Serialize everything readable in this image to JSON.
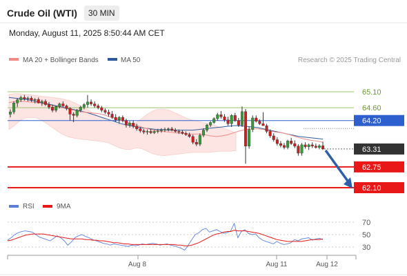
{
  "header": {
    "title": "Crude Oil (WTI)",
    "timeframe": "30 MIN",
    "datetime": "Monday, August 11, 2025 8:50:44 AM CET"
  },
  "chart_data": {
    "type": "candlestick",
    "legend": [
      {
        "label": "MA 20 + Bollinger Bands",
        "color": "#f08b86"
      },
      {
        "label": "MA 50",
        "color": "#2d5a9e"
      }
    ],
    "copyright": "Research © 2025 Trading Central",
    "x_tick_labels": [
      "Aug 8",
      "Aug 11",
      "Aug 12"
    ],
    "ylim": [
      61.95,
      65.45
    ],
    "levels": [
      {
        "value": "65.10",
        "kind": "resistance",
        "color": "#9bc36e",
        "label_style": "text"
      },
      {
        "value": "64.60",
        "kind": "resistance",
        "color": "#9bc36e",
        "label_style": "text"
      },
      {
        "value": "64.20",
        "kind": "pivot",
        "color": "#2d5fce",
        "label_style": "box"
      },
      {
        "value": "63.31",
        "kind": "last",
        "color": "#333333",
        "label_style": "box"
      },
      {
        "value": "62.75",
        "kind": "support",
        "color": "#e81818",
        "label_style": "box"
      },
      {
        "value": "62.10",
        "kind": "support",
        "color": "#e81818",
        "label_style": "box"
      }
    ],
    "candles": [
      [
        64.4,
        64.55,
        64.3,
        64.47
      ],
      [
        64.47,
        64.8,
        64.4,
        64.75
      ],
      [
        64.75,
        64.9,
        64.62,
        64.85
      ],
      [
        64.85,
        64.98,
        64.78,
        64.92
      ],
      [
        64.92,
        65.0,
        64.82,
        64.88
      ],
      [
        64.88,
        64.95,
        64.8,
        64.9
      ],
      [
        64.9,
        64.96,
        64.78,
        64.84
      ],
      [
        64.84,
        64.9,
        64.74,
        64.86
      ],
      [
        64.86,
        64.92,
        64.73,
        64.76
      ],
      [
        64.76,
        64.85,
        64.66,
        64.8
      ],
      [
        64.8,
        64.86,
        64.66,
        64.7
      ],
      [
        64.7,
        64.78,
        64.56,
        64.62
      ],
      [
        64.62,
        64.7,
        64.46,
        64.52
      ],
      [
        64.52,
        64.66,
        64.46,
        64.64
      ],
      [
        64.64,
        64.76,
        64.58,
        64.72
      ],
      [
        64.72,
        64.8,
        64.62,
        64.66
      ],
      [
        64.66,
        64.7,
        64.52,
        64.58
      ],
      [
        64.58,
        64.62,
        64.2,
        64.4
      ],
      [
        64.4,
        64.46,
        64.15,
        64.36
      ],
      [
        64.36,
        64.56,
        64.3,
        64.52
      ],
      [
        64.52,
        64.66,
        64.46,
        64.62
      ],
      [
        64.62,
        64.74,
        64.55,
        64.7
      ],
      [
        64.7,
        65.0,
        64.6,
        64.78
      ],
      [
        64.78,
        64.86,
        64.66,
        64.72
      ],
      [
        64.72,
        64.8,
        64.6,
        64.66
      ],
      [
        64.66,
        64.72,
        64.55,
        64.6
      ],
      [
        64.6,
        64.66,
        64.46,
        64.52
      ],
      [
        64.52,
        64.58,
        64.4,
        64.46
      ],
      [
        64.46,
        64.54,
        64.32,
        64.4
      ],
      [
        64.4,
        64.5,
        64.25,
        64.3
      ],
      [
        64.3,
        64.4,
        64.15,
        64.22
      ],
      [
        64.22,
        64.34,
        64.1,
        64.3
      ],
      [
        64.3,
        64.36,
        64.14,
        64.2
      ],
      [
        64.2,
        64.26,
        63.98,
        64.06
      ],
      [
        64.06,
        64.18,
        63.98,
        64.12
      ],
      [
        64.12,
        64.2,
        63.96,
        64.02
      ],
      [
        64.02,
        64.1,
        63.88,
        63.94
      ],
      [
        63.94,
        64.0,
        63.82,
        63.88
      ],
      [
        63.88,
        63.94,
        63.78,
        63.84
      ],
      [
        63.84,
        63.92,
        63.76,
        63.86
      ],
      [
        63.86,
        63.94,
        63.78,
        63.82
      ],
      [
        63.82,
        63.9,
        63.78,
        63.86
      ],
      [
        63.86,
        63.94,
        63.8,
        63.88
      ],
      [
        63.88,
        63.96,
        63.82,
        63.9
      ],
      [
        63.9,
        63.98,
        63.84,
        63.92
      ],
      [
        63.92,
        63.98,
        63.86,
        63.94
      ],
      [
        63.94,
        64.0,
        63.86,
        63.9
      ],
      [
        63.9,
        63.96,
        63.82,
        63.86
      ],
      [
        63.86,
        63.92,
        63.78,
        63.84
      ],
      [
        63.84,
        63.9,
        63.76,
        63.8
      ],
      [
        63.8,
        63.86,
        63.72,
        63.76
      ],
      [
        63.76,
        63.82,
        63.66,
        63.7
      ],
      [
        63.7,
        63.76,
        63.46,
        63.52
      ],
      [
        63.52,
        63.62,
        63.4,
        63.46
      ],
      [
        63.46,
        63.8,
        63.4,
        63.74
      ],
      [
        63.74,
        63.96,
        63.68,
        63.9
      ],
      [
        63.9,
        64.1,
        63.84,
        64.06
      ],
      [
        64.06,
        64.18,
        64.0,
        64.14
      ],
      [
        64.14,
        64.3,
        64.1,
        64.26
      ],
      [
        64.26,
        64.44,
        64.2,
        64.38
      ],
      [
        64.38,
        64.5,
        64.26,
        64.32
      ],
      [
        64.32,
        64.4,
        64.16,
        64.22
      ],
      [
        64.22,
        64.32,
        64.04,
        64.1
      ],
      [
        64.1,
        64.4,
        64.0,
        64.36
      ],
      [
        64.36,
        64.44,
        64.16,
        64.2
      ],
      [
        64.2,
        64.28,
        64.0,
        64.06
      ],
      [
        64.06,
        64.64,
        64.0,
        64.48
      ],
      [
        64.48,
        64.56,
        62.85,
        63.4
      ],
      [
        63.4,
        64.0,
        63.32,
        63.92
      ],
      [
        63.92,
        64.36,
        63.84,
        64.28
      ],
      [
        64.28,
        64.36,
        64.14,
        64.18
      ],
      [
        64.18,
        64.24,
        64.06,
        64.1
      ],
      [
        64.1,
        64.46,
        64.04,
        64.04
      ],
      [
        64.04,
        64.1,
        63.8,
        63.86
      ],
      [
        63.86,
        63.92,
        63.66,
        63.72
      ],
      [
        63.72,
        63.8,
        63.54,
        63.6
      ],
      [
        63.6,
        63.68,
        63.42,
        63.48
      ],
      [
        63.48,
        63.56,
        63.36,
        63.42
      ],
      [
        63.42,
        63.5,
        63.3,
        63.36
      ],
      [
        63.36,
        63.6,
        63.3,
        63.56
      ],
      [
        63.56,
        63.66,
        63.44,
        63.48
      ],
      [
        63.48,
        63.58,
        63.34,
        63.4
      ],
      [
        63.4,
        63.46,
        63.1,
        63.18
      ],
      [
        63.18,
        63.5,
        63.1,
        63.44
      ],
      [
        63.44,
        63.52,
        63.32,
        63.38
      ],
      [
        63.38,
        63.48,
        63.28,
        63.44
      ],
      [
        63.44,
        63.52,
        63.34,
        63.4
      ],
      [
        63.4,
        63.48,
        63.32,
        63.36
      ],
      [
        63.36,
        63.46,
        63.3,
        63.41
      ],
      [
        63.41,
        63.54,
        63.28,
        63.31
      ]
    ],
    "ma20": [
      64.76,
      64.8,
      64.8,
      64.79,
      64.77,
      64.75,
      64.72,
      64.68,
      64.64,
      64.6,
      64.56,
      64.52,
      64.48,
      64.46,
      64.44,
      64.42,
      64.38,
      64.32,
      64.26,
      64.2,
      64.14,
      64.08,
      64.02,
      63.96,
      63.92,
      63.88,
      63.86,
      63.84,
      63.82,
      63.8,
      63.79,
      63.78,
      63.78,
      63.76,
      63.72,
      63.7,
      63.72,
      63.76,
      63.82,
      63.88,
      63.92,
      63.94,
      63.94,
      63.92,
      63.88,
      63.84,
      63.82,
      63.78,
      63.72,
      63.66,
      63.62,
      63.58,
      63.56,
      63.52
    ],
    "ma50": [
      64.92,
      64.9,
      64.88,
      64.86,
      64.82,
      64.78,
      64.74,
      64.7,
      64.66,
      64.62,
      64.58,
      64.54,
      64.5,
      64.46,
      64.4,
      64.34,
      64.28,
      64.22,
      64.16,
      64.1,
      64.06,
      64.02,
      63.98,
      63.96,
      63.94,
      63.92,
      63.92,
      63.9,
      63.9,
      63.9,
      63.9,
      63.9,
      63.92,
      63.94,
      63.96,
      63.98,
      64.0,
      64.02,
      64.04,
      64.04,
      64.02,
      64.0,
      63.98,
      63.94,
      63.9,
      63.86,
      63.82,
      63.78,
      63.74,
      63.7,
      63.68,
      63.66,
      63.64,
      63.62
    ],
    "bb_upper": [
      65.02,
      65.04,
      65.04,
      65.02,
      65.0,
      64.98,
      64.96,
      64.94,
      64.92,
      64.9,
      64.86,
      64.82,
      64.74,
      64.66,
      64.56,
      64.46,
      64.36,
      64.26,
      64.18,
      64.12,
      64.08,
      64.06,
      64.08,
      64.14,
      64.26,
      64.4,
      64.5,
      64.56,
      64.56,
      64.52,
      64.44,
      64.36,
      64.28,
      64.22,
      64.18,
      64.14,
      64.1,
      64.06,
      64.0,
      63.94,
      63.88,
      63.82
    ],
    "bb_lower": [
      63.92,
      64.04,
      64.2,
      64.28,
      64.3,
      64.28,
      64.2,
      64.08,
      63.96,
      63.84,
      63.74,
      63.68,
      63.64,
      63.62,
      63.6,
      63.58,
      63.56,
      63.54,
      63.5,
      63.42,
      63.34,
      63.3,
      63.3,
      63.34,
      63.32,
      63.24,
      63.16,
      63.12,
      63.1,
      63.12,
      63.14,
      63.16,
      63.18,
      63.2,
      63.2,
      63.2,
      63.2,
      63.22,
      63.24,
      63.24,
      63.24,
      63.26
    ],
    "projection": {
      "from": 63.31,
      "to": 62.1
    },
    "rsi": {
      "legend": [
        {
          "label": "RSI",
          "color": "#5b7ed9"
        },
        {
          "label": "9MA",
          "color": "#e81818"
        }
      ],
      "ticks": [
        "70",
        "50",
        "30"
      ],
      "ylim": [
        20,
        80
      ],
      "rsi_values": [
        41,
        45,
        50,
        53,
        55,
        56,
        55,
        54,
        50,
        46,
        44,
        42,
        40,
        44,
        48,
        45,
        40,
        33,
        38,
        45,
        48,
        50,
        47,
        45,
        42,
        40,
        38,
        36,
        35,
        33,
        35,
        34,
        33,
        32,
        31,
        33,
        32,
        33,
        35,
        34,
        35,
        36,
        35,
        33,
        34,
        35,
        33,
        32,
        30,
        28,
        25,
        33,
        42,
        50,
        53,
        58,
        60,
        54,
        56,
        58,
        55,
        52,
        53,
        56,
        68,
        45,
        55,
        58,
        52,
        50,
        51,
        45,
        41,
        39,
        37,
        35,
        39,
        36,
        34,
        35,
        37,
        42,
        40,
        43,
        44,
        45,
        41,
        43,
        44,
        42
      ],
      "ma_values": [
        40,
        41,
        43,
        45,
        47,
        49,
        50,
        51,
        51,
        51,
        51,
        50,
        49,
        48,
        47,
        46,
        45,
        44,
        43,
        43,
        43,
        43,
        42,
        42,
        41,
        41,
        40,
        40,
        39,
        38,
        37,
        37,
        36,
        35,
        35,
        34,
        34,
        34,
        34,
        34,
        34,
        34,
        34,
        34,
        34,
        34,
        34,
        34,
        33,
        33,
        32,
        32,
        33,
        35,
        37,
        40,
        43,
        46,
        49,
        51,
        52,
        54,
        55,
        55,
        57,
        56,
        56,
        56,
        55,
        54,
        53,
        52,
        50,
        48,
        46,
        44,
        42,
        41,
        40,
        39,
        39,
        39,
        39,
        39,
        40,
        41,
        42,
        42,
        42,
        43
      ]
    }
  }
}
